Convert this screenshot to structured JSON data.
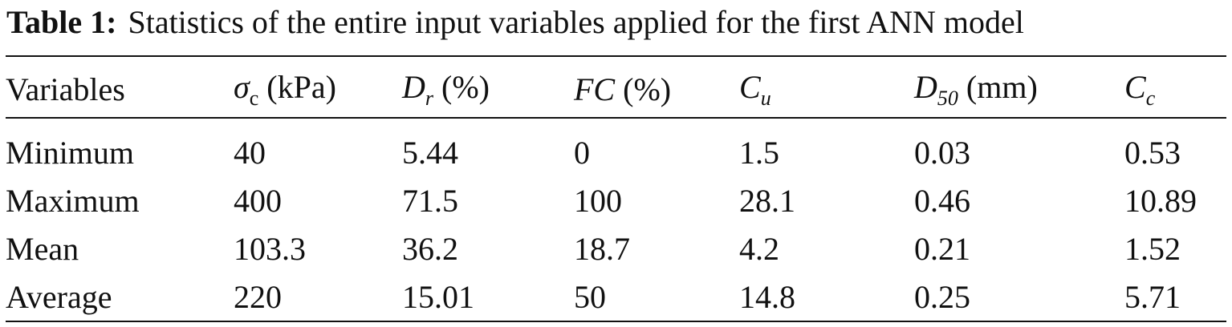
{
  "caption": {
    "label": "Table 1:",
    "text": "Statistics of the entire input variables applied for the first ANN model"
  },
  "table": {
    "headers": [
      {
        "main": "Variables",
        "sub": "",
        "unit": ""
      },
      {
        "main": "σ",
        "sub": "c",
        "unit": " (kPa)"
      },
      {
        "main": "D",
        "sub": "r",
        "unit": " (%)"
      },
      {
        "main": "FC",
        "sub": "",
        "unit": " (%)"
      },
      {
        "main": "C",
        "sub": "u",
        "unit": ""
      },
      {
        "main": "D",
        "sub": "50",
        "unit": " (mm)"
      },
      {
        "main": "C",
        "sub": "c",
        "unit": ""
      }
    ],
    "rows": [
      [
        "Minimum",
        "40",
        "5.44",
        "0",
        "1.5",
        "0.03",
        "0.53"
      ],
      [
        "Maximum",
        "400",
        "71.5",
        "100",
        "28.1",
        "0.46",
        "10.89"
      ],
      [
        "Mean",
        "103.3",
        "36.2",
        "18.7",
        "4.2",
        "0.21",
        "1.52"
      ],
      [
        "Average",
        "220",
        "15.01",
        "50",
        "14.8",
        "0.25",
        "5.71"
      ]
    ]
  }
}
